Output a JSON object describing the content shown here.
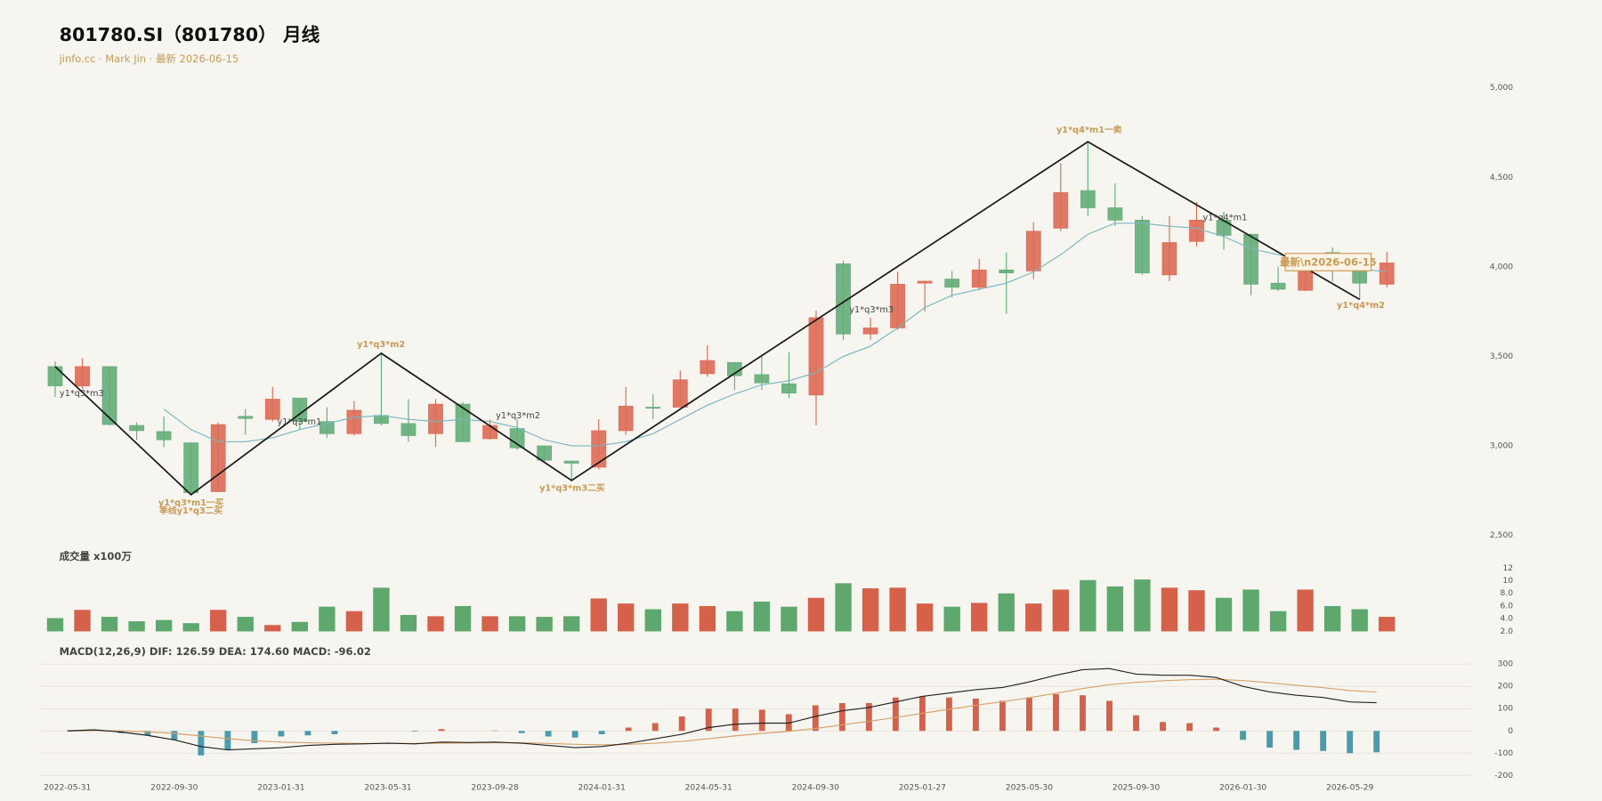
{
  "chart_data": [
    {
      "type": "candlestick",
      "title": "801780.SI（801780） 月线",
      "subtitle": "jinfo.cc · Mark Jin · 最新 2026-06-15",
      "up_color": "#dc6b56",
      "down_color": "#64ad78",
      "open": [
        3443,
        3335,
        3443,
        3114,
        3080,
        3017,
        2744,
        3165,
        3148,
        3267,
        3136,
        3068,
        3170,
        3125,
        3068,
        3233,
        3040,
        3097,
        3000,
        2915,
        2881,
        3085,
        3216,
        3216,
        3403,
        3466,
        3398,
        3347,
        3284,
        4017,
        3625,
        3659,
        3909,
        3932,
        3886,
        3983,
        3977,
        4216,
        4426,
        4330,
        4261,
        3955,
        4142,
        4261,
        4182,
        3909,
        3869,
        4080,
        3989,
        3903
      ],
      "high": [
        3472,
        3489,
        3443,
        3131,
        3165,
        3017,
        3131,
        3205,
        3330,
        3267,
        3216,
        3250,
        3517,
        3261,
        3261,
        3244,
        3148,
        3148,
        3000,
        2915,
        3148,
        3330,
        3290,
        3420,
        3562,
        3466,
        3500,
        3523,
        3756,
        4034,
        3716,
        3972,
        3920,
        3977,
        4045,
        4080,
        4250,
        4580,
        4699,
        4466,
        4284,
        4284,
        4363,
        4307,
        4187,
        4000,
        4045,
        4108,
        4011,
        4085
      ],
      "low": [
        3273,
        3318,
        3114,
        3034,
        2994,
        2727,
        2744,
        3062,
        3136,
        3091,
        3045,
        3057,
        3114,
        3023,
        2994,
        3023,
        3034,
        2977,
        2909,
        2807,
        2869,
        3062,
        3148,
        3216,
        3386,
        3312,
        3312,
        3267,
        3114,
        3591,
        3591,
        3648,
        3750,
        3829,
        3869,
        3738,
        3932,
        4199,
        4284,
        4227,
        3955,
        3920,
        4114,
        4097,
        3841,
        3864,
        3864,
        3920,
        3818,
        3886
      ],
      "close": [
        3335,
        3443,
        3119,
        3085,
        3034,
        2739,
        3119,
        3153,
        3261,
        3136,
        3068,
        3199,
        3125,
        3057,
        3233,
        3023,
        3114,
        2989,
        2920,
        2903,
        3085,
        3222,
        3210,
        3369,
        3477,
        3392,
        3352,
        3295,
        3716,
        3625,
        3659,
        3903,
        3920,
        3886,
        3983,
        3966,
        4199,
        4415,
        4330,
        4261,
        3966,
        4136,
        4261,
        4176,
        3903,
        3875,
        4028,
        4000,
        3909,
        4022
      ],
      "ma": {
        "color": "#79b6bf",
        "values": [
          null,
          null,
          null,
          null,
          3205,
          3091,
          3023,
          3023,
          3045,
          3091,
          3125,
          3159,
          3170,
          3148,
          3136,
          3148,
          3136,
          3102,
          3034,
          3000,
          3000,
          3023,
          3068,
          3148,
          3227,
          3290,
          3341,
          3364,
          3409,
          3500,
          3557,
          3659,
          3773,
          3841,
          3875,
          3909,
          3972,
          4068,
          4182,
          4244,
          4244,
          4227,
          4216,
          4170,
          4102,
          4068,
          4045,
          4023,
          3989,
          3972
        ]
      },
      "zigzag": {
        "color": "#1a1a1a",
        "x": [
          0,
          5,
          12,
          19,
          38,
          48
        ],
        "values": [
          3443,
          2727,
          3517,
          2807,
          4699,
          3818
        ]
      },
      "annotations": [
        {
          "text": "y1*q3*m3",
          "color": "#444444"
        },
        {
          "text": "y1*q3*m1一买",
          "color": "#c89a55"
        },
        {
          "text": "季线y1*q3二买",
          "color": "#c89a55"
        },
        {
          "text": "y1*q3*m1",
          "color": "#444444"
        },
        {
          "text": "y1*q3*m2",
          "color": "#c89a55"
        },
        {
          "text": "y1*q3*m2",
          "color": "#444444"
        },
        {
          "text": "y1*q3*m3二买",
          "color": "#c89a55"
        },
        {
          "text": "y1*q3*m3",
          "color": "#444444"
        },
        {
          "text": "y1*q4*m1一卖",
          "color": "#c89a55"
        },
        {
          "text": "y1*q4*m1",
          "color": "#444444"
        },
        {
          "text": "y1*q4*m2",
          "color": "#c89a55"
        }
      ],
      "latest_label": "最新\\n2026-06-15",
      "ylim": [
        2500,
        5000
      ],
      "yticks": [
        {
          "value": 2500,
          "label": "2,500"
        },
        {
          "value": 3000,
          "label": "3,000"
        },
        {
          "value": 3500,
          "label": "3,500"
        },
        {
          "value": 4000,
          "label": "4,000"
        },
        {
          "value": 4500,
          "label": "4,500"
        },
        {
          "value": 5000,
          "label": "5,000"
        }
      ],
      "grid": false
    },
    {
      "type": "bar",
      "title": "成交量 x100万",
      "up_color": "#d5614b",
      "down_color": "#5ea86e",
      "values": [
        4.1,
        5.4,
        4.3,
        3.6,
        3.8,
        3.3,
        5.4,
        4.3,
        3.0,
        3.5,
        5.9,
        5.2,
        8.9,
        4.6,
        4.4,
        6.0,
        4.4,
        4.4,
        4.3,
        4.4,
        7.2,
        6.4,
        5.5,
        6.4,
        6.0,
        5.2,
        6.7,
        5.9,
        7.3,
        9.6,
        8.8,
        8.9,
        6.4,
        5.9,
        6.5,
        8.0,
        6.4,
        8.6,
        10.1,
        9.1,
        10.2,
        8.9,
        8.5,
        7.3,
        8.6,
        5.2,
        8.6,
        6.0,
        5.5,
        4.3
      ],
      "ylim": [
        2,
        12
      ],
      "yticks": [
        {
          "value": 2,
          "label": "2.0"
        },
        {
          "value": 4,
          "label": "4.0"
        },
        {
          "value": 6,
          "label": "6.0"
        },
        {
          "value": 8,
          "label": "8.0"
        },
        10,
        12
      ],
      "grid": false
    },
    {
      "type": "macd",
      "title": "MACD(12,26,9) DIF: 126.59 DEA: 174.60 MACD: -96.02",
      "categories": [
        "2022-05-31",
        null,
        null,
        null,
        "2022-09-30",
        null,
        null,
        null,
        "2023-01-31",
        null,
        null,
        null,
        "2023-05-31",
        null,
        null,
        null,
        "2023-09-28",
        null,
        null,
        null,
        "2024-01-31",
        null,
        null,
        null,
        "2024-05-31",
        null,
        null,
        null,
        "2024-09-30",
        null,
        null,
        null,
        "2025-01-27",
        null,
        null,
        null,
        "2025-05-30",
        null,
        null,
        null,
        "2025-09-30",
        null,
        null,
        null,
        "2026-01-30",
        null,
        null,
        null,
        "2026-05-29",
        null
      ],
      "histogram": {
        "pos_color": "#d5614b",
        "neg_color": "#4a9bab",
        "values": [
          0,
          5,
          -10,
          -20,
          -40,
          -110,
          -85,
          -55,
          -25,
          -20,
          -15,
          0,
          0,
          -3,
          8,
          0,
          2,
          -10,
          -25,
          -30,
          -15,
          15,
          35,
          65,
          100,
          100,
          95,
          75,
          115,
          125,
          125,
          150,
          155,
          150,
          145,
          135,
          150,
          165,
          160,
          135,
          70,
          40,
          35,
          15,
          -40,
          -75,
          -85,
          -90,
          -100,
          -96.02
        ]
      },
      "dif": {
        "color": "#222222",
        "values": [
          0,
          5,
          -5,
          -20,
          -40,
          -70,
          -85,
          -80,
          -75,
          -65,
          -60,
          -58,
          -55,
          -58,
          -50,
          -52,
          -50,
          -55,
          -65,
          -75,
          -70,
          -55,
          -35,
          -15,
          15,
          30,
          35,
          35,
          65,
          90,
          105,
          130,
          155,
          170,
          185,
          195,
          220,
          250,
          275,
          280,
          255,
          250,
          250,
          240,
          200,
          175,
          160,
          150,
          130,
          126.59
        ]
      },
      "dea": {
        "color": "#d6a068",
        "values": [
          0,
          1,
          0,
          -4,
          -11,
          -23,
          -35,
          -44,
          -50,
          -53,
          -55,
          -56,
          -56,
          -56,
          -55,
          -54,
          -53,
          -53,
          -56,
          -60,
          -62,
          -60,
          -55,
          -47,
          -35,
          -22,
          -11,
          -2,
          11,
          27,
          43,
          60,
          79,
          97,
          115,
          131,
          149,
          169,
          190,
          208,
          218,
          225,
          230,
          232,
          226,
          216,
          205,
          194,
          181,
          174.6
        ]
      },
      "ylim": [
        -200,
        300
      ],
      "yticks": [
        -200,
        -100,
        0,
        100,
        200,
        300
      ],
      "grid": true
    }
  ]
}
